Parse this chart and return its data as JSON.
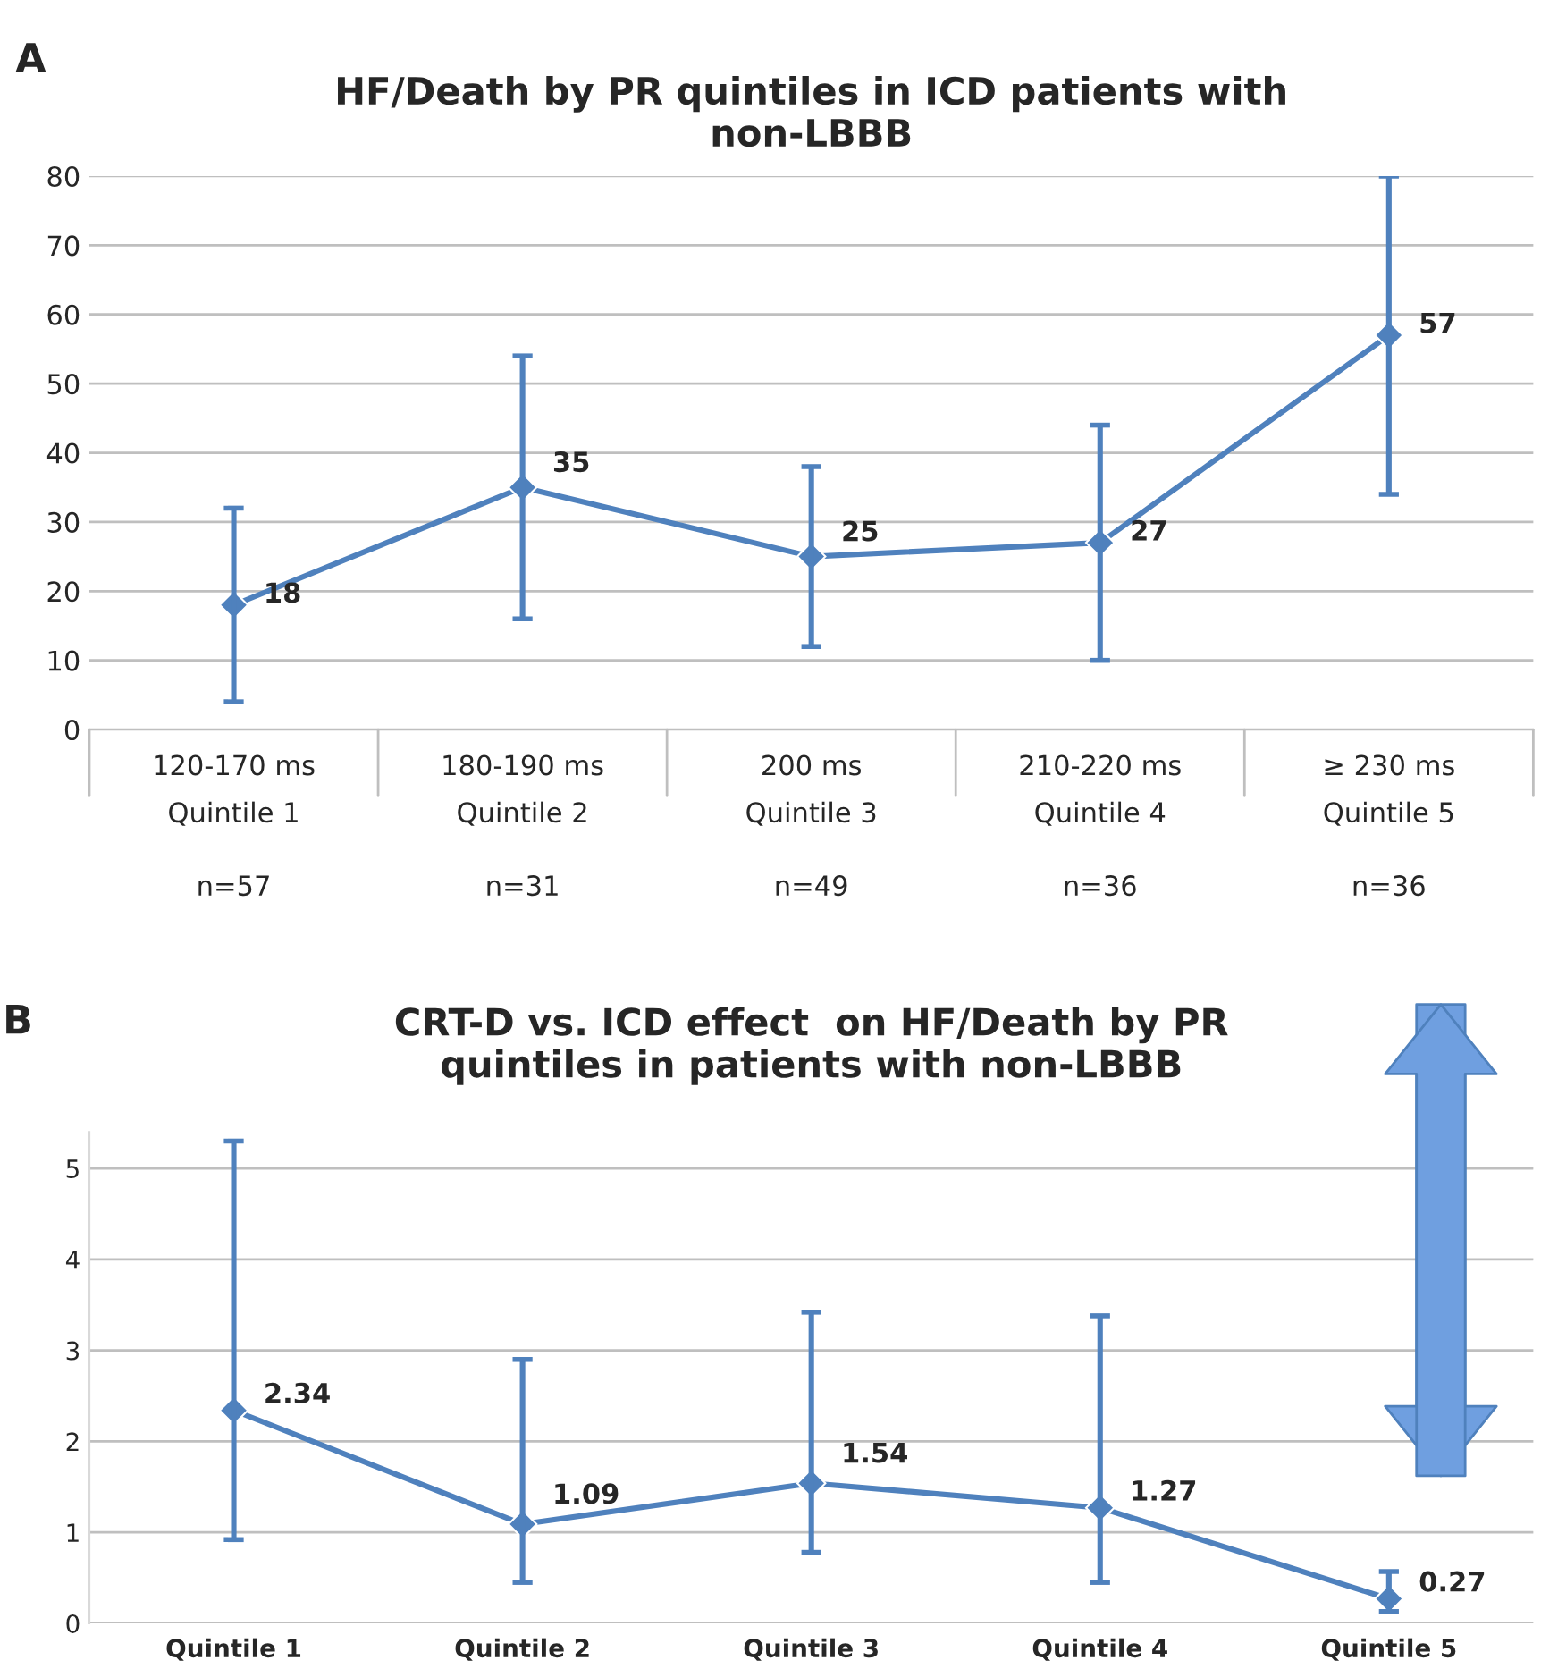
{
  "chart_data": [
    {
      "type": "line",
      "title": "HF/Death by PR quintiles in ICD patients with\nnon-LBBB",
      "categories": [
        "120-170 ms\nQuintile 1",
        "180-190 ms\nQuintile 2",
        "200 ms\nQuintile 3",
        "210-220 ms\nQuintile 4",
        "≥ 230 ms\nQuintile 5"
      ],
      "series": [
        {
          "color": "#4f81bd",
          "values": [
            18,
            35,
            25,
            27,
            57
          ],
          "errors": [
            [
              4,
              32
            ],
            [
              16,
              54
            ],
            [
              12,
              38
            ],
            [
              10,
              44
            ],
            [
              34,
              80
            ]
          ]
        }
      ],
      "ylim": [
        0,
        80
      ],
      "yticks": [
        0,
        10,
        20,
        30,
        40,
        50,
        60,
        70,
        80
      ],
      "grid": "y",
      "marker": "diamond",
      "line_style": "solid",
      "data_labels": true,
      "annotations": [
        "A",
        "n=57",
        "n=31",
        "n=49",
        "n=36",
        "n=36"
      ]
    },
    {
      "type": "line",
      "title": "CRT-D vs. ICD effect  on HF/Death by PR\nquintiles in patients with non-LBBB",
      "categories": [
        "Quintile 1",
        "Quintile 2",
        "Quintile 3",
        "Quintile 4",
        "Quintile 5"
      ],
      "series": [
        {
          "color": "#4f81bd",
          "values": [
            2.34,
            1.09,
            1.54,
            1.27,
            0.27
          ],
          "errors": [
            [
              0.92,
              5.3
            ],
            [
              0.45,
              2.9
            ],
            [
              0.78,
              3.42
            ],
            [
              0.45,
              3.38
            ],
            [
              0.13,
              0.57
            ]
          ]
        }
      ],
      "ylim": [
        0,
        5.4
      ],
      "yticks": [
        0,
        1,
        2,
        3,
        4,
        5
      ],
      "grid": "y",
      "marker": "diamond",
      "line_style": "solid",
      "data_labels": true,
      "annotations": [
        "B"
      ]
    }
  ]
}
